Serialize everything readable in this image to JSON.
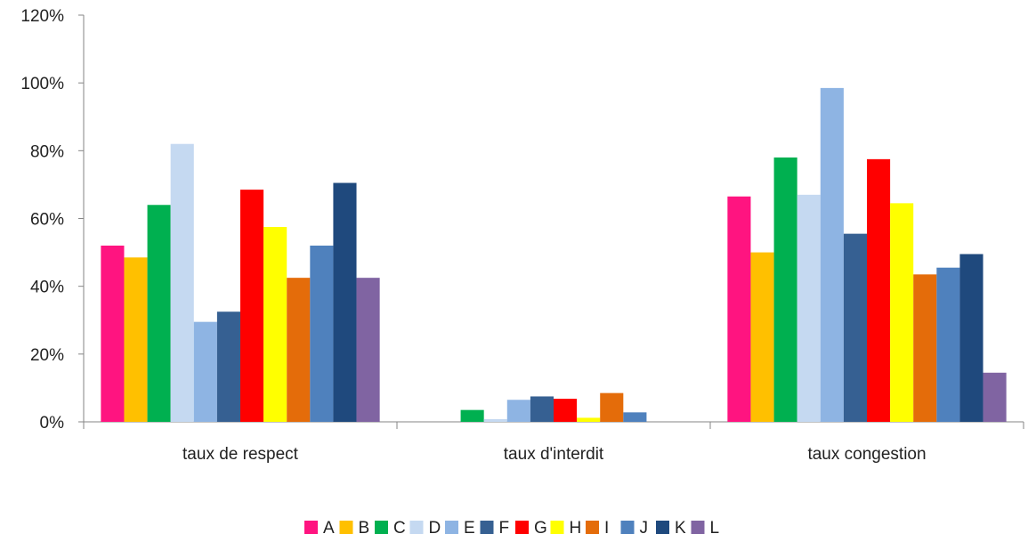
{
  "chart_data": {
    "type": "bar",
    "title": "",
    "xlabel": "",
    "ylabel": "",
    "ylim": [
      0,
      120
    ],
    "y_unit": "%",
    "yticks": [
      0,
      20,
      40,
      60,
      80,
      100,
      120
    ],
    "ytick_labels": [
      "0%",
      "20%",
      "40%",
      "60%",
      "80%",
      "100%",
      "120%"
    ],
    "grid": false,
    "legend_position": "bottom",
    "categories": [
      "taux de respect",
      "taux d'interdit",
      "taux congestion"
    ],
    "series": [
      {
        "name": "A",
        "color": "#FF1480",
        "values": [
          52,
          0,
          66.5
        ]
      },
      {
        "name": "B",
        "color": "#FFC000",
        "values": [
          48.5,
          0,
          50
        ]
      },
      {
        "name": "C",
        "color": "#00B050",
        "values": [
          64,
          3.5,
          78
        ]
      },
      {
        "name": "D",
        "color": "#C5D9F1",
        "values": [
          82,
          0.8,
          67
        ]
      },
      {
        "name": "E",
        "color": "#8EB4E3",
        "values": [
          29.5,
          6.5,
          98.5
        ]
      },
      {
        "name": "F",
        "color": "#366092",
        "values": [
          32.5,
          7.5,
          55.5
        ]
      },
      {
        "name": "G",
        "color": "#FF0000",
        "values": [
          68.5,
          6.8,
          77.5
        ]
      },
      {
        "name": "H",
        "color": "#FFFF00",
        "values": [
          57.5,
          1.2,
          64.5
        ]
      },
      {
        "name": "I",
        "color": "#E46C0A",
        "values": [
          42.5,
          8.5,
          43.5
        ]
      },
      {
        "name": "J",
        "color": "#4F81BD",
        "values": [
          52,
          2.8,
          45.5
        ]
      },
      {
        "name": "K",
        "color": "#1F497D",
        "values": [
          70.5,
          0,
          49.5
        ]
      },
      {
        "name": "L",
        "color": "#8064A2",
        "values": [
          42.5,
          0,
          14.5
        ]
      }
    ]
  }
}
